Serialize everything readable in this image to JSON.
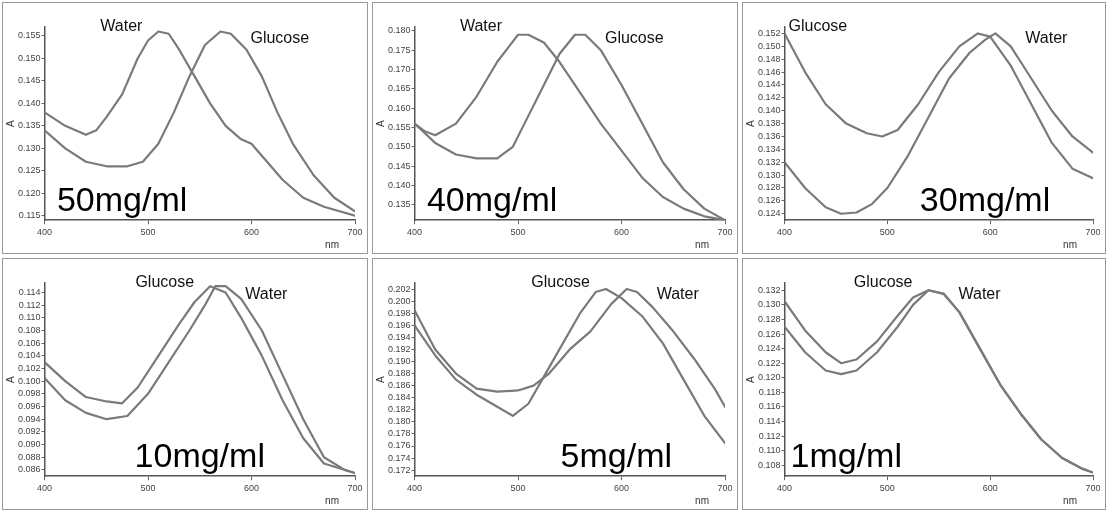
{
  "chart_data": [
    {
      "type": "line",
      "xlabel": "nm",
      "ylabel": "A",
      "annotations": [
        "50mg/ml"
      ],
      "xlim": [
        400,
        700
      ],
      "xticks": [
        400,
        500,
        600,
        700
      ],
      "ylim": [
        0.114,
        0.157
      ],
      "yticks": [
        0.115,
        {
          "value": 0.12,
          "label": "0.120"
        },
        0.125,
        {
          "value": 0.13,
          "label": "0.130"
        },
        0.135,
        {
          "value": 0.14,
          "label": "0.140"
        },
        0.145,
        {
          "value": 0.15,
          "label": "0.150"
        },
        0.155
      ],
      "grid": false,
      "legend": false,
      "marker": "none",
      "x": [
        400,
        420,
        440,
        450,
        460,
        475,
        490,
        500,
        510,
        520,
        530,
        545,
        560,
        575,
        590,
        600,
        615,
        630,
        650,
        670,
        700
      ],
      "series": [
        {
          "name": "Water",
          "color": "#7a7a7a",
          "values": [
            0.138,
            0.135,
            0.133,
            0.134,
            0.137,
            0.142,
            0.15,
            0.154,
            0.156,
            0.1555,
            0.152,
            0.146,
            0.14,
            0.135,
            0.132,
            0.131,
            0.127,
            0.123,
            0.119,
            0.117,
            0.115
          ]
        },
        {
          "name": "Glucose",
          "color": "#7a7a7a",
          "x": [
            400,
            420,
            440,
            460,
            480,
            495,
            510,
            525,
            540,
            555,
            570,
            580,
            595,
            610,
            625,
            640,
            660,
            680,
            700
          ],
          "values": [
            0.134,
            0.13,
            0.127,
            0.126,
            0.126,
            0.127,
            0.131,
            0.138,
            0.146,
            0.153,
            0.156,
            0.1555,
            0.152,
            0.146,
            0.138,
            0.131,
            0.124,
            0.119,
            0.116
          ]
        }
      ]
    },
    {
      "type": "line",
      "xlabel": "nm",
      "ylabel": "A",
      "annotations": [
        "40mg/ml"
      ],
      "xlim": [
        400,
        700
      ],
      "xticks": [
        400,
        500,
        600,
        700
      ],
      "ylim": [
        0.131,
        0.181
      ],
      "yticks": [
        0.135,
        {
          "value": 0.14,
          "label": "0.140"
        },
        0.145,
        {
          "value": 0.15,
          "label": "0.150"
        },
        0.155,
        {
          "value": 0.16,
          "label": "0.160"
        },
        0.165,
        {
          "value": 0.17,
          "label": "0.170"
        },
        0.175,
        {
          "value": 0.18,
          "label": "0.180"
        }
      ],
      "grid": false,
      "legend": false,
      "marker": "none",
      "x": [
        400,
        410,
        420,
        440,
        460,
        480,
        500,
        510,
        525,
        540,
        560,
        580,
        600,
        620,
        640,
        660,
        680,
        700
      ],
      "series": [
        {
          "name": "Water",
          "color": "#7a7a7a",
          "values": [
            0.156,
            0.154,
            0.153,
            0.156,
            0.163,
            0.172,
            0.179,
            0.179,
            0.177,
            0.172,
            0.164,
            0.156,
            0.149,
            0.142,
            0.137,
            0.134,
            0.132,
            0.131
          ]
        },
        {
          "name": "Glucose",
          "color": "#7a7a7a",
          "x": [
            400,
            420,
            440,
            460,
            480,
            495,
            510,
            525,
            540,
            555,
            565,
            580,
            600,
            620,
            640,
            660,
            680,
            700
          ],
          "values": [
            0.156,
            0.151,
            0.148,
            0.147,
            0.147,
            0.15,
            0.158,
            0.166,
            0.174,
            0.179,
            0.179,
            0.175,
            0.166,
            0.156,
            0.146,
            0.139,
            0.134,
            0.131
          ]
        }
      ]
    },
    {
      "type": "line",
      "xlabel": "nm",
      "ylabel": "A",
      "annotations": [
        "30mg/ml"
      ],
      "xlim": [
        400,
        700
      ],
      "xticks": [
        400,
        500,
        600,
        700
      ],
      "ylim": [
        0.123,
        0.153
      ],
      "yticks": [
        0.124,
        0.126,
        0.128,
        {
          "value": 0.13,
          "label": "0.130"
        },
        0.132,
        0.134,
        0.136,
        0.138,
        {
          "value": 0.14,
          "label": "0.140"
        },
        0.142,
        0.144,
        0.146,
        0.148,
        {
          "value": 0.15,
          "label": "0.150"
        },
        0.152
      ],
      "grid": false,
      "legend": false,
      "marker": "none",
      "x": [
        400,
        420,
        440,
        460,
        480,
        495,
        510,
        530,
        550,
        570,
        588,
        600,
        620,
        640,
        660,
        680,
        700
      ],
      "series": [
        {
          "name": "Glucose",
          "color": "#7a7a7a",
          "values": [
            0.152,
            0.146,
            0.141,
            0.138,
            0.1365,
            0.136,
            0.137,
            0.141,
            0.146,
            0.15,
            0.152,
            0.1515,
            0.147,
            0.141,
            0.135,
            0.131,
            0.1295
          ]
        },
        {
          "name": "Water",
          "color": "#7a7a7a",
          "x": [
            400,
            420,
            440,
            455,
            470,
            485,
            500,
            520,
            540,
            560,
            580,
            595,
            605,
            620,
            640,
            660,
            680,
            700
          ],
          "values": [
            0.132,
            0.128,
            0.125,
            0.124,
            0.1242,
            0.1255,
            0.128,
            0.133,
            0.139,
            0.145,
            0.149,
            0.151,
            0.152,
            0.15,
            0.145,
            0.14,
            0.136,
            0.1335
          ]
        }
      ]
    },
    {
      "type": "line",
      "xlabel": "nm",
      "ylabel": "A",
      "annotations": [
        "10mg/ml"
      ],
      "xlim": [
        400,
        700
      ],
      "xticks": [
        400,
        500,
        600,
        700
      ],
      "ylim": [
        0.085,
        0.1155
      ],
      "yticks": [
        0.086,
        0.088,
        {
          "value": 0.09,
          "label": "0.090"
        },
        0.092,
        0.094,
        0.096,
        0.098,
        {
          "value": 0.1,
          "label": "0.100"
        },
        0.102,
        0.104,
        0.106,
        0.108,
        {
          "value": 0.11,
          "label": "0.110"
        },
        0.112,
        0.114
      ],
      "grid": false,
      "legend": false,
      "marker": "none",
      "x": [
        400,
        420,
        440,
        460,
        475,
        490,
        510,
        530,
        545,
        560,
        575,
        590,
        610,
        630,
        650,
        670,
        700
      ],
      "series": [
        {
          "name": "Glucose",
          "color": "#7a7a7a",
          "values": [
            0.103,
            0.1,
            0.0975,
            0.0968,
            0.0965,
            0.099,
            0.104,
            0.109,
            0.1125,
            0.115,
            0.114,
            0.11,
            0.104,
            0.097,
            0.091,
            0.087,
            0.0855
          ]
        },
        {
          "name": "Water",
          "color": "#7a7a7a",
          "x": [
            400,
            420,
            440,
            460,
            480,
            500,
            520,
            540,
            555,
            565,
            575,
            590,
            610,
            630,
            650,
            670,
            690,
            700
          ],
          "values": [
            0.1005,
            0.097,
            0.095,
            0.094,
            0.0945,
            0.098,
            0.103,
            0.108,
            0.112,
            0.115,
            0.115,
            0.113,
            0.108,
            0.101,
            0.094,
            0.088,
            0.086,
            0.0855
          ]
        }
      ]
    },
    {
      "type": "line",
      "xlabel": "nm",
      "ylabel": "A",
      "annotations": [
        "5mg/ml"
      ],
      "xlim": [
        400,
        700
      ],
      "xticks": [
        400,
        500,
        600,
        700
      ],
      "ylim": [
        0.171,
        0.203
      ],
      "yticks": [
        0.172,
        0.174,
        0.176,
        0.178,
        {
          "value": 0.18,
          "label": "0.180"
        },
        0.182,
        0.184,
        0.186,
        0.188,
        {
          "value": 0.19,
          "label": "0.190"
        },
        0.192,
        0.194,
        0.196,
        0.198,
        {
          "value": 0.2,
          "label": "0.200"
        },
        0.202
      ],
      "grid": false,
      "legend": false,
      "marker": "none",
      "x": [
        400,
        420,
        440,
        460,
        480,
        495,
        510,
        525,
        540,
        560,
        575,
        585,
        600,
        620,
        640,
        660,
        680,
        700
      ],
      "series": [
        {
          "name": "Glucose",
          "color": "#7a7a7a",
          "values": [
            0.196,
            0.191,
            0.187,
            0.1845,
            0.1825,
            0.181,
            0.183,
            0.1875,
            0.192,
            0.198,
            0.2015,
            0.202,
            0.2005,
            0.1975,
            0.193,
            0.187,
            0.181,
            0.1765
          ]
        },
        {
          "name": "Water",
          "color": "#7a7a7a",
          "x": [
            400,
            420,
            440,
            460,
            480,
            500,
            515,
            530,
            550,
            570,
            590,
            605,
            615,
            630,
            650,
            670,
            690,
            700
          ],
          "values": [
            0.1985,
            0.192,
            0.188,
            0.1855,
            0.185,
            0.1852,
            0.186,
            0.188,
            0.192,
            0.195,
            0.1995,
            0.202,
            0.2015,
            0.199,
            0.195,
            0.1905,
            0.1855,
            0.1825
          ]
        }
      ]
    },
    {
      "type": "line",
      "xlabel": "nm",
      "ylabel": "A",
      "annotations": [
        "1mg/ml"
      ],
      "xlim": [
        400,
        700
      ],
      "xticks": [
        400,
        500,
        600,
        700
      ],
      "ylim": [
        0.1065,
        0.133
      ],
      "yticks": [
        0.108,
        {
          "value": 0.11,
          "label": "0.110"
        },
        0.112,
        0.114,
        0.116,
        0.118,
        {
          "value": 0.12,
          "label": "0.120"
        },
        0.122,
        0.124,
        0.126,
        0.128,
        {
          "value": 0.13,
          "label": "0.130"
        },
        0.132
      ],
      "grid": false,
      "legend": false,
      "marker": "none",
      "x": [
        400,
        420,
        440,
        455,
        470,
        490,
        510,
        525,
        540,
        555,
        570,
        590,
        610,
        630,
        650,
        670,
        690,
        700
      ],
      "series": [
        {
          "name": "Glucose",
          "color": "#7a7a7a",
          "values": [
            0.1305,
            0.1265,
            0.1235,
            0.122,
            0.1225,
            0.125,
            0.1285,
            0.131,
            0.132,
            0.1315,
            0.129,
            0.124,
            0.119,
            0.115,
            0.1115,
            0.109,
            0.1075,
            0.107
          ]
        },
        {
          "name": "Water",
          "color": "#7a7a7a",
          "values": [
            0.127,
            0.1235,
            0.121,
            0.1205,
            0.121,
            0.1235,
            0.127,
            0.13,
            0.132,
            0.1315,
            0.129,
            0.124,
            0.119,
            0.115,
            0.1115,
            0.109,
            0.1075,
            0.107
          ]
        }
      ]
    }
  ]
}
